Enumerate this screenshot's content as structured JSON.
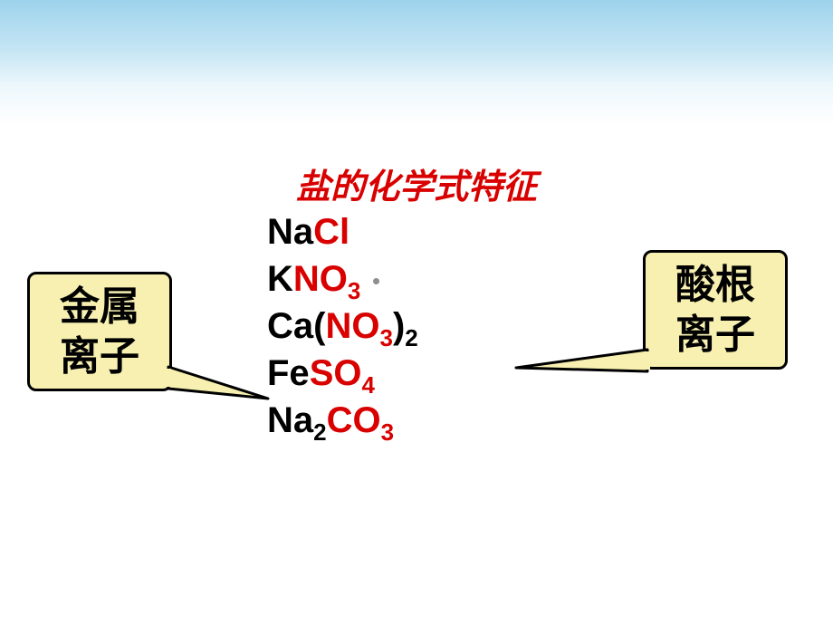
{
  "title": "盐的化学式特征",
  "formulas": [
    {
      "cation": "Na",
      "anion_parts": [
        "Cl"
      ]
    },
    {
      "cation": "K",
      "anion_parts": [
        "NO",
        {
          "sub": "3"
        }
      ],
      "trailing_dot": true
    },
    {
      "cation": "Ca",
      "open_paren": "(",
      "anion_parts": [
        "NO",
        {
          "sub": "3"
        }
      ],
      "close_paren": ")",
      "outer_sub": "2"
    },
    {
      "cation": "Fe",
      "anion_parts": [
        "SO",
        {
          "sub": "4"
        }
      ]
    },
    {
      "cation": "Na",
      "cation_sub": "2",
      "anion_parts": [
        "CO",
        {
          "sub": "3"
        }
      ]
    }
  ],
  "callout_left_line1": "金属",
  "callout_left_line2": "离子",
  "callout_right_line1": "酸根",
  "callout_right_line2": "离子",
  "colors": {
    "anion": "#d90000",
    "cation": "#000000",
    "callout_bg": "#f7f0b0",
    "callout_border": "#000000"
  }
}
